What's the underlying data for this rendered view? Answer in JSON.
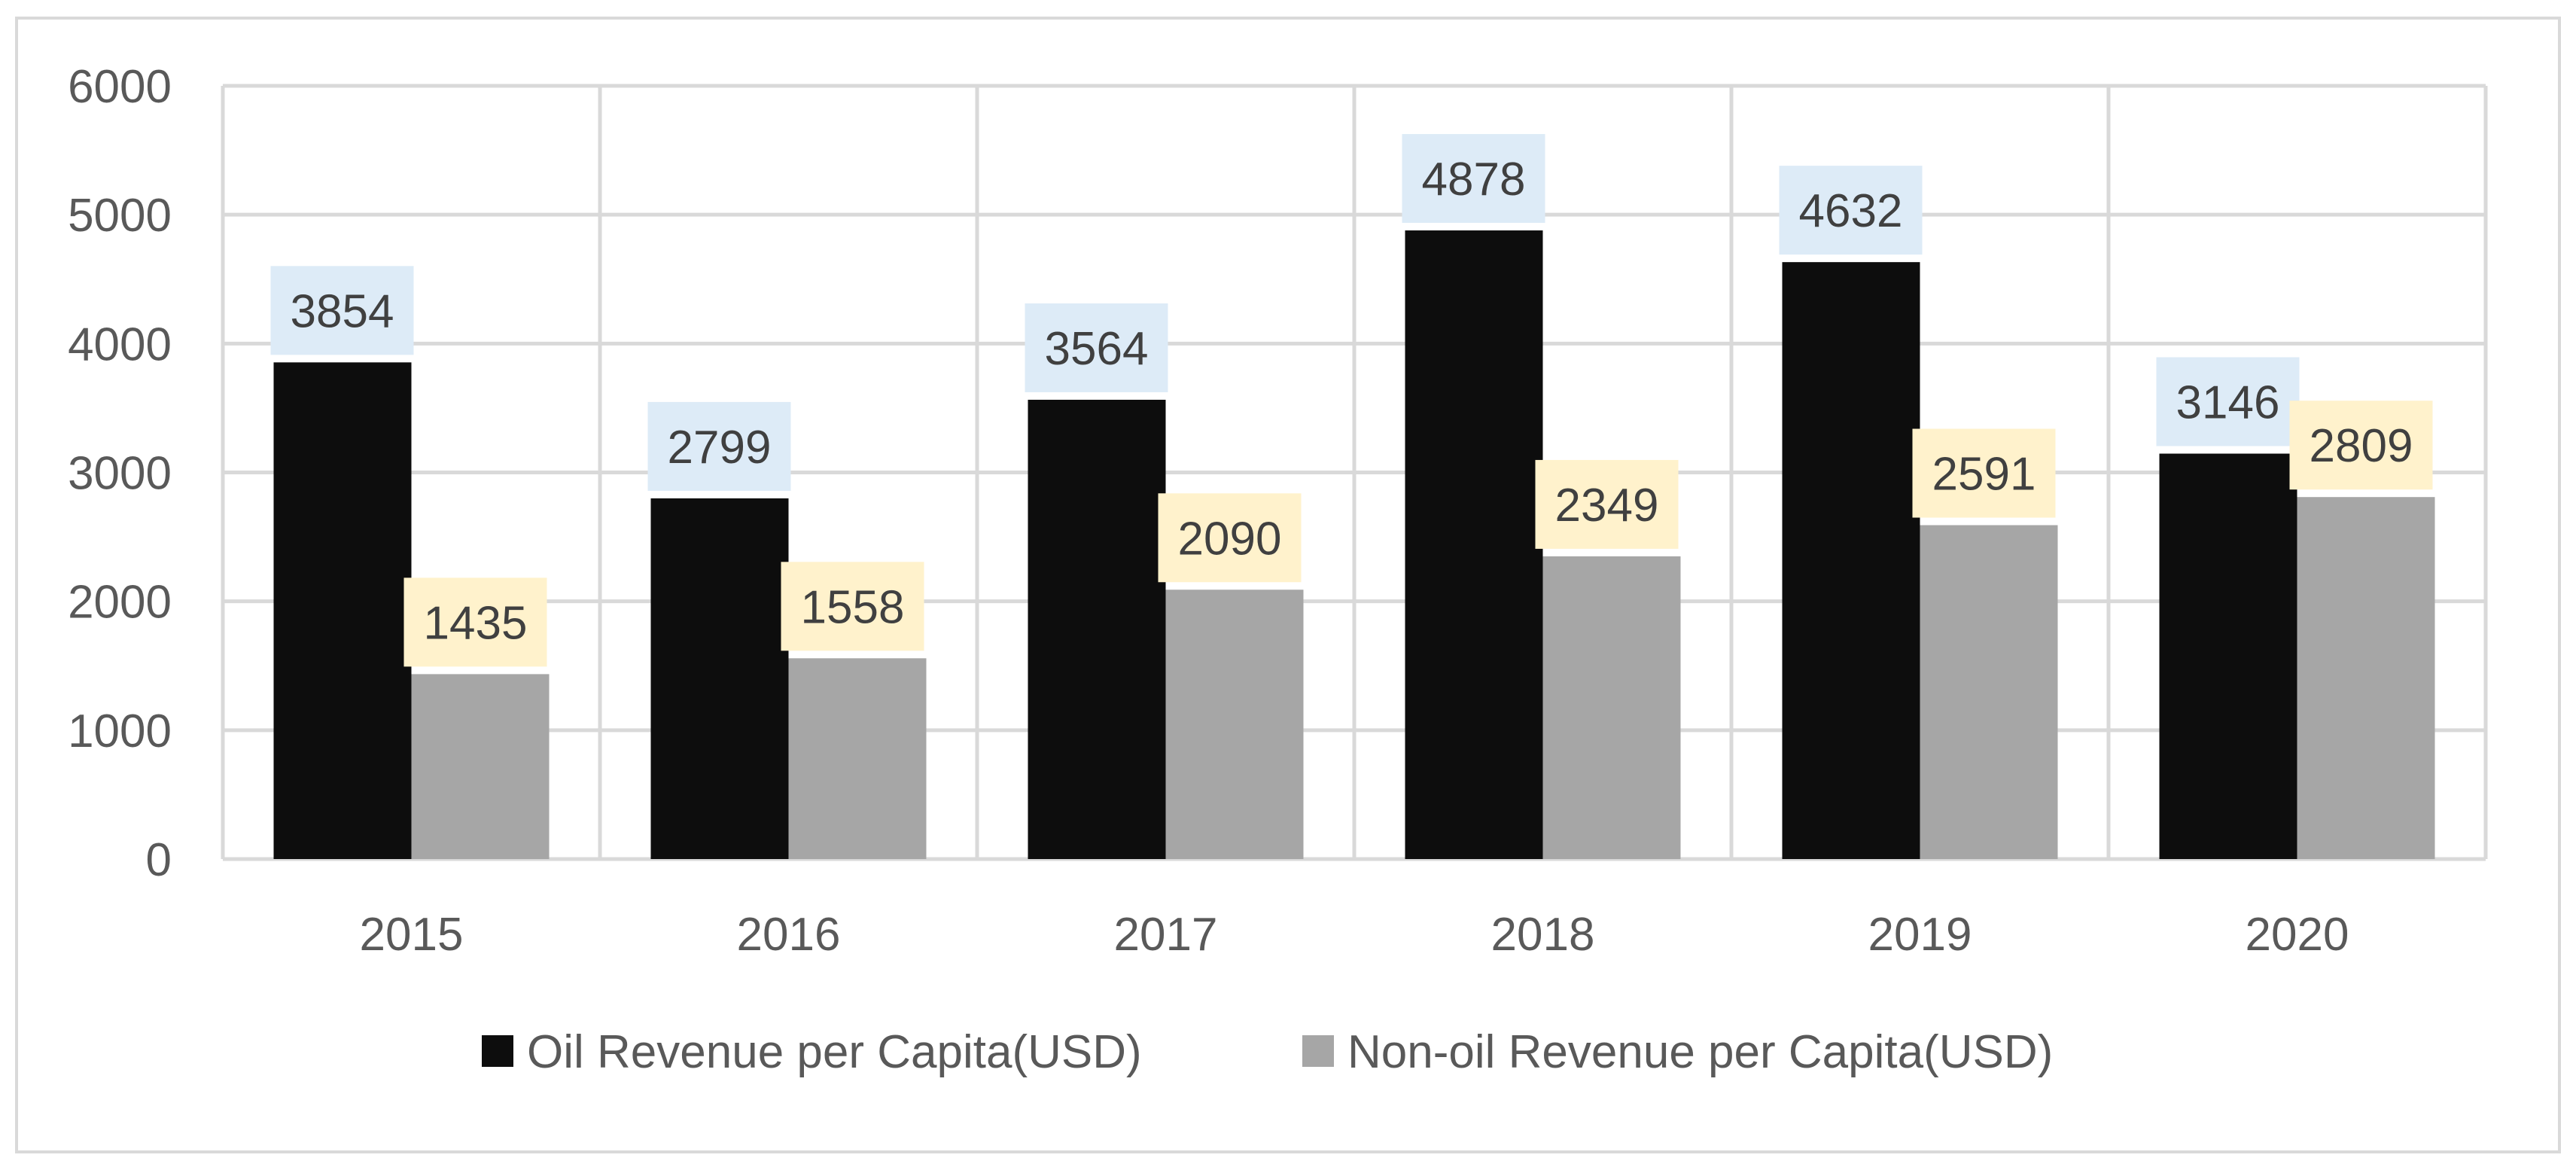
{
  "chart_data": {
    "type": "bar",
    "title": "",
    "xlabel": "",
    "ylabel": "",
    "categories": [
      "2015",
      "2016",
      "2017",
      "2018",
      "2019",
      "2020"
    ],
    "series": [
      {
        "name": "Oil Revenue per Capita(USD)",
        "values": [
          3854,
          2799,
          3564,
          4878,
          4632,
          3146
        ],
        "color": "#0d0d0d",
        "label_bg": "#ddebf7"
      },
      {
        "name": "Non-oil Revenue per Capita(USD)",
        "values": [
          1435,
          1558,
          2090,
          2349,
          2591,
          2809
        ],
        "color": "#a6a6a6",
        "label_bg": "#fff2cc"
      }
    ],
    "ylim": [
      0,
      6000
    ],
    "yticks": [
      0,
      1000,
      2000,
      3000,
      4000,
      5000,
      6000
    ],
    "grid": true,
    "legend_position": "bottom"
  },
  "colors": {
    "grid": "#d9d9d9",
    "frame": "#d9d9d9",
    "tick_text": "#595959",
    "label_text": "#404040"
  }
}
